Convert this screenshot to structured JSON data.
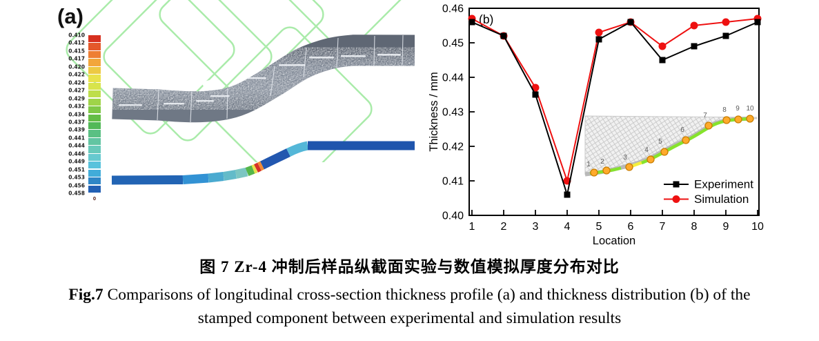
{
  "panel_a": {
    "label": "(a)",
    "legend": {
      "values": [
        "0.410",
        "0.412",
        "0.415",
        "0.417",
        "0.420",
        "0.422",
        "0.424",
        "0.427",
        "0.429",
        "0.432",
        "0.434",
        "0.437",
        "0.439",
        "0.441",
        "0.444",
        "0.446",
        "0.449",
        "0.451",
        "0.453",
        "0.456",
        "0.458"
      ],
      "zero_label": "0",
      "colors": [
        "#d7301f",
        "#e4582a",
        "#ee7e33",
        "#f2a63b",
        "#edc943",
        "#e9e24b",
        "#d8e44b",
        "#bede4a",
        "#9fd449",
        "#7fc847",
        "#63bd46",
        "#52b957",
        "#5ac083",
        "#62c5a2",
        "#68c9ba",
        "#66c9cf",
        "#58c2dc",
        "#41acd9",
        "#2f86c6",
        "#2360b4"
      ],
      "watermark_color": "#9ce89c"
    },
    "profile_colors": [
      "#2264b4",
      "#3292d4",
      "#4aaad0",
      "#63bbc9",
      "#7cc6c2",
      "#55b649",
      "#e6e14b",
      "#d63028",
      "#f08a35",
      "#2257af",
      "#54b7d8",
      "#1f55ad"
    ]
  },
  "panel_b": {
    "label": "(b)"
  },
  "chart_data": {
    "type": "line",
    "title": "",
    "xlabel": "Location",
    "ylabel": "Thickness / mm",
    "x": [
      1,
      2,
      3,
      4,
      5,
      6,
      7,
      8,
      9,
      10
    ],
    "xlim": [
      1,
      10
    ],
    "ylim": [
      0.4,
      0.46
    ],
    "xticks": [
      "1",
      "2",
      "3",
      "4",
      "5",
      "6",
      "7",
      "8",
      "9",
      "10"
    ],
    "yticks": [
      "0.46",
      "0.45",
      "0.44",
      "0.43",
      "0.42",
      "0.41",
      "0.40"
    ],
    "grid": false,
    "legend_position": "inside-bottom-right",
    "series": [
      {
        "name": "Experiment",
        "color": "#000000",
        "marker": "square",
        "values": [
          0.456,
          0.452,
          0.435,
          0.406,
          0.451,
          0.456,
          0.445,
          0.449,
          0.452,
          0.456
        ]
      },
      {
        "name": "Simulation",
        "color": "#ee1111",
        "marker": "circle",
        "values": [
          0.457,
          0.452,
          0.437,
          0.41,
          0.453,
          0.456,
          0.449,
          0.455,
          0.456,
          0.457
        ]
      }
    ],
    "inset": {
      "point_labels": [
        "1",
        "2",
        "3",
        "4",
        "5",
        "6",
        "7",
        "8",
        "9",
        "10"
      ]
    }
  },
  "caption": {
    "zh_prefix": "图 7",
    "zh_text": " Zr-4 冲制后样品纵截面实验与数值模拟厚度分布对比",
    "en_prefix": "Fig.7",
    "en_line1": " Comparisons of longitudinal cross-section thickness profile (a) and thickness distribution (b) of the",
    "en_line2": "stamped component between experimental and simulation results"
  }
}
